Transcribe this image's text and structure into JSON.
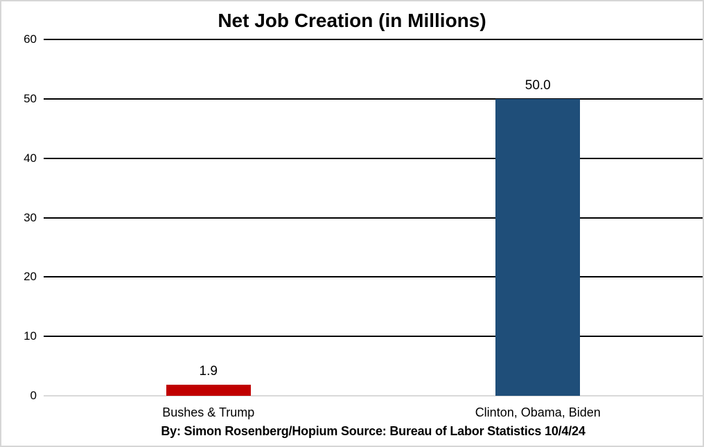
{
  "frame": {
    "background": "#ffffff",
    "border_color": "#d6d6d6"
  },
  "footer": {
    "text": "By: Simon Rosenberg/Hopium Source: Bureau of Labor Statistics 10/4/24"
  },
  "colors": {
    "bar_bushes_trump": "#c00000",
    "bar_clinton_obama_biden": "#1f4e79",
    "gridline": "#000000",
    "zero_line": "#d9d9d9",
    "text": "#000000"
  },
  "chart_data": {
    "type": "bar",
    "title": "Net Job Creation (in Millions)",
    "categories": [
      "Bushes & Trump",
      "Clinton, Obama, Biden"
    ],
    "values": [
      1.9,
      50.0
    ],
    "value_labels": [
      "1.9",
      "50.0"
    ],
    "bar_colors": [
      "#c00000",
      "#1f4e79"
    ],
    "xlabel": "",
    "ylabel": "",
    "ylim": [
      0,
      60
    ],
    "yticks": [
      0,
      10,
      20,
      30,
      40,
      50,
      60
    ],
    "grid": "horizontal",
    "grid_color": "#000000",
    "zero_line_color": "#d9d9d9",
    "legend": "none"
  }
}
